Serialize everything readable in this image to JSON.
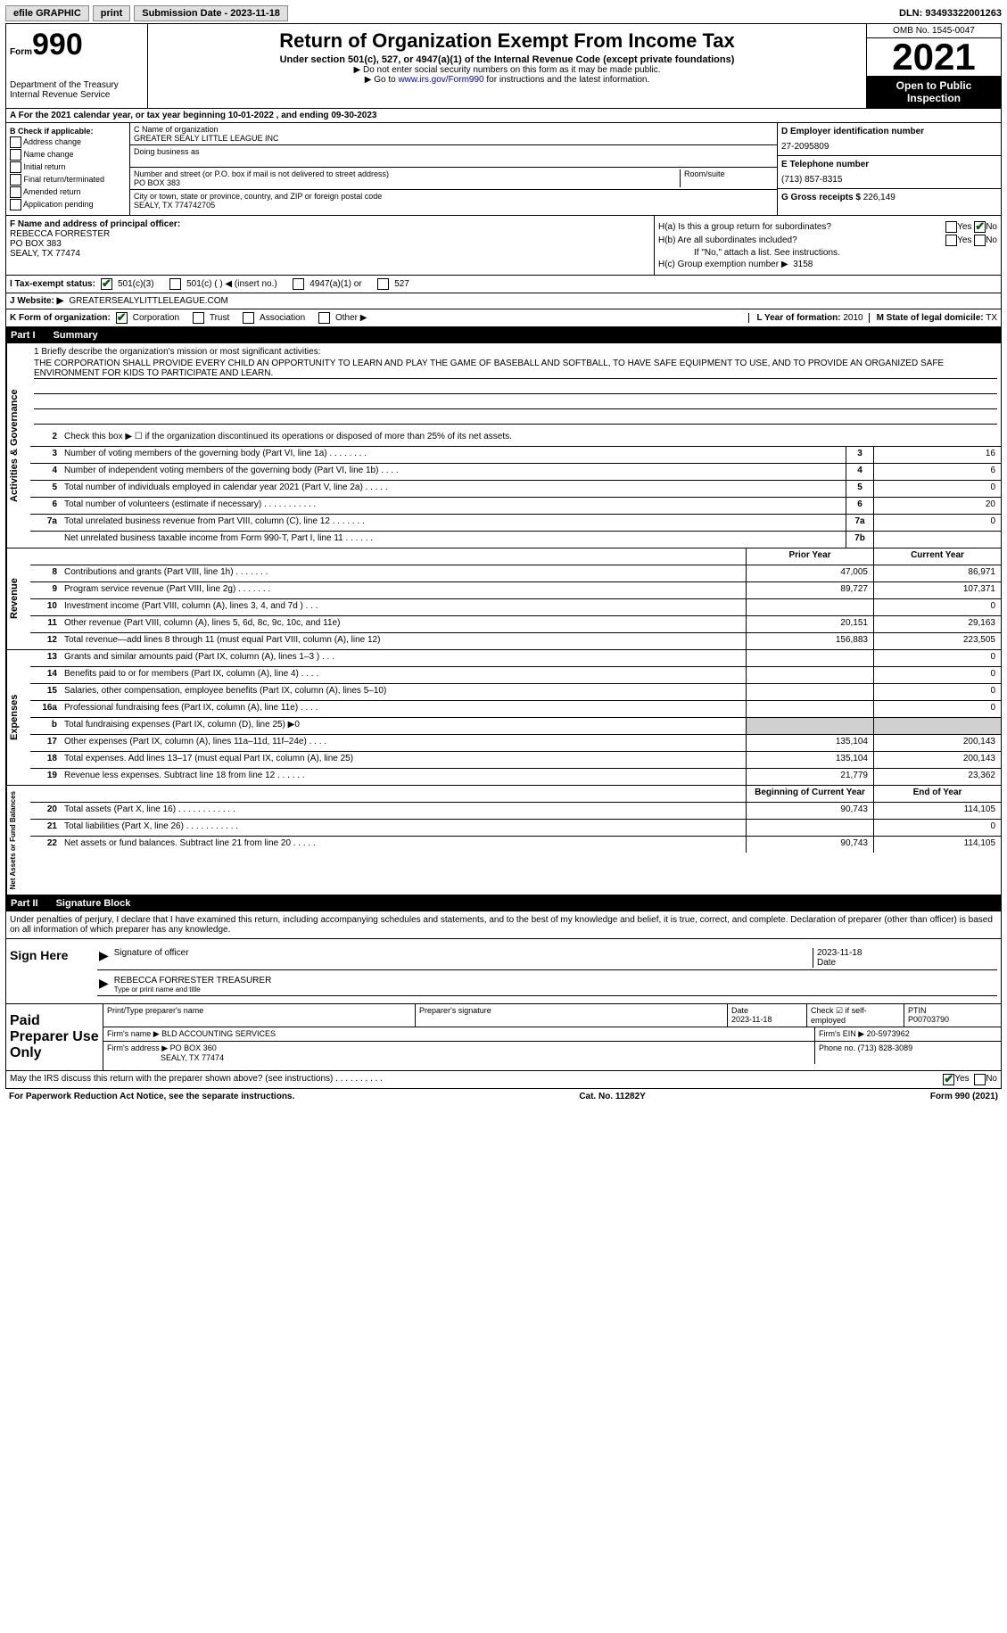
{
  "topbar": {
    "efile": "efile GRAPHIC",
    "print": "print",
    "submission": "Submission Date - 2023-11-18",
    "dln": "DLN: 93493322001263"
  },
  "header": {
    "form_label": "Form",
    "form_no": "990",
    "title": "Return of Organization Exempt From Income Tax",
    "subtitle": "Under section 501(c), 527, or 4947(a)(1) of the Internal Revenue Code (except private foundations)",
    "note1": "▶ Do not enter social security numbers on this form as it may be made public.",
    "note2_pre": "▶ Go to ",
    "note2_link": "www.irs.gov/Form990",
    "note2_post": " for instructions and the latest information.",
    "dept": "Department of the Treasury",
    "irs": "Internal Revenue Service",
    "omb": "OMB No. 1545-0047",
    "year": "2021",
    "open": "Open to Public Inspection"
  },
  "row_a": "A For the 2021 calendar year, or tax year beginning 10-01-2022   , and ending 09-30-2023",
  "col_b": {
    "title": "B Check if applicable:",
    "items": [
      "Address change",
      "Name change",
      "Initial return",
      "Final return/terminated",
      "Amended return",
      "Application pending"
    ]
  },
  "col_c": {
    "name_lbl": "C Name of organization",
    "name": "GREATER SEALY LITTLE LEAGUE INC",
    "dba": "Doing business as",
    "addr_lbl": "Number and street (or P.O. box if mail is not delivered to street address)",
    "room_lbl": "Room/suite",
    "addr": "PO BOX 383",
    "city_lbl": "City or town, state or province, country, and ZIP or foreign postal code",
    "city": "SEALY, TX  774742705"
  },
  "col_de": {
    "d_lbl": "D Employer identification number",
    "d_val": "27-2095809",
    "e_lbl": "E Telephone number",
    "e_val": "(713) 857-8315",
    "g_lbl": "G Gross receipts $",
    "g_val": "226,149"
  },
  "f": {
    "lbl": "F Name and address of principal officer:",
    "name": "REBECCA FORRESTER",
    "addr1": "PO BOX 383",
    "addr2": "SEALY, TX  77474"
  },
  "h": {
    "a_lbl": "H(a)  Is this a group return for subordinates?",
    "b_lbl": "H(b)  Are all subordinates included?",
    "b_note": "If \"No,\" attach a list. See instructions.",
    "c_lbl": "H(c)  Group exemption number ▶",
    "c_val": "3158",
    "yes": "Yes",
    "no": "No"
  },
  "i": {
    "lbl": "I  Tax-exempt status:",
    "opts": [
      "501(c)(3)",
      "501(c) (  ) ◀ (insert no.)",
      "4947(a)(1) or",
      "527"
    ]
  },
  "j": {
    "lbl": "J  Website: ▶",
    "val": "GREATERSEALYLITTLELEAGUE.COM"
  },
  "k": {
    "lbl": "K Form of organization:",
    "opts": [
      "Corporation",
      "Trust",
      "Association",
      "Other ▶"
    ],
    "l_lbl": "L Year of formation:",
    "l_val": "2010",
    "m_lbl": "M State of legal domicile:",
    "m_val": "TX"
  },
  "part1": {
    "label": "Part I",
    "title": "Summary"
  },
  "mission": {
    "lbl": "1   Briefly describe the organization's mission or most significant activities:",
    "text": "THE CORPORATION SHALL PROVIDE EVERY CHILD AN OPPORTUNITY TO LEARN AND PLAY THE GAME OF BASEBALL AND SOFTBALL, TO HAVE SAFE EQUIPMENT TO USE, AND TO PROVIDE AN ORGANIZED SAFE ENVIRONMENT FOR KIDS TO PARTICIPATE AND LEARN."
  },
  "line2": "Check this box ▶ ☐  if the organization discontinued its operations or disposed of more than 25% of its net assets.",
  "gov_rows": [
    {
      "n": "3",
      "d": "Number of voting members of the governing body (Part VI, line 1a)   .    .    .    .    .    .    .    .",
      "b": "3",
      "v": "16"
    },
    {
      "n": "4",
      "d": "Number of independent voting members of the governing body (Part VI, line 1b)   .    .    .    .",
      "b": "4",
      "v": "6"
    },
    {
      "n": "5",
      "d": "Total number of individuals employed in calendar year 2021 (Part V, line 2a)   .    .    .    .    .",
      "b": "5",
      "v": "0"
    },
    {
      "n": "6",
      "d": "Total number of volunteers (estimate if necessary)    .    .    .    .    .    .    .    .    .    .    .",
      "b": "6",
      "v": "20"
    },
    {
      "n": "7a",
      "d": "Total unrelated business revenue from Part VIII, column (C), line 12    .    .    .    .    .    .    .",
      "b": "7a",
      "v": "0"
    },
    {
      "n": "",
      "d": "Net unrelated business taxable income from Form 990-T, Part I, line 11   .    .    .    .    .    .",
      "b": "7b",
      "v": ""
    }
  ],
  "rev_header": {
    "py": "Prior Year",
    "cy": "Current Year"
  },
  "rev_rows": [
    {
      "n": "8",
      "d": "Contributions and grants (Part VIII, line 1h)    .    .    .    .    .    .    .",
      "py": "47,005",
      "cy": "86,971"
    },
    {
      "n": "9",
      "d": "Program service revenue (Part VIII, line 2g)    .    .    .    .    .    .    .",
      "py": "89,727",
      "cy": "107,371"
    },
    {
      "n": "10",
      "d": "Investment income (Part VIII, column (A), lines 3, 4, and 7d )    .    .    .",
      "py": "",
      "cy": "0"
    },
    {
      "n": "11",
      "d": "Other revenue (Part VIII, column (A), lines 5, 6d, 8c, 9c, 10c, and 11e)",
      "py": "20,151",
      "cy": "29,163"
    },
    {
      "n": "12",
      "d": "Total revenue—add lines 8 through 11 (must equal Part VIII, column (A), line 12)",
      "py": "156,883",
      "cy": "223,505"
    }
  ],
  "exp_rows": [
    {
      "n": "13",
      "d": "Grants and similar amounts paid (Part IX, column (A), lines 1–3 )   .    .    .",
      "py": "",
      "cy": "0"
    },
    {
      "n": "14",
      "d": "Benefits paid to or for members (Part IX, column (A), line 4)   .    .    .    .",
      "py": "",
      "cy": "0"
    },
    {
      "n": "15",
      "d": "Salaries, other compensation, employee benefits (Part IX, column (A), lines 5–10)",
      "py": "",
      "cy": "0"
    },
    {
      "n": "16a",
      "d": "Professional fundraising fees (Part IX, column (A), line 11e)   .    .    .    .",
      "py": "",
      "cy": "0"
    },
    {
      "n": "b",
      "d": "Total fundraising expenses (Part IX, column (D), line 25) ▶0",
      "py": "shade",
      "cy": "shade"
    },
    {
      "n": "17",
      "d": "Other expenses (Part IX, column (A), lines 11a–11d, 11f–24e)   .    .    .    .",
      "py": "135,104",
      "cy": "200,143"
    },
    {
      "n": "18",
      "d": "Total expenses. Add lines 13–17 (must equal Part IX, column (A), line 25)",
      "py": "135,104",
      "cy": "200,143"
    },
    {
      "n": "19",
      "d": "Revenue less expenses. Subtract line 18 from line 12   .    .    .    .    .    .",
      "py": "21,779",
      "cy": "23,362"
    }
  ],
  "na_header": {
    "py": "Beginning of Current Year",
    "cy": "End of Year"
  },
  "na_rows": [
    {
      "n": "20",
      "d": "Total assets (Part X, line 16)   .    .    .    .    .    .    .    .    .    .    .    .",
      "py": "90,743",
      "cy": "114,105"
    },
    {
      "n": "21",
      "d": "Total liabilities (Part X, line 26)   .    .    .    .    .    .    .    .    .    .    .",
      "py": "",
      "cy": "0"
    },
    {
      "n": "22",
      "d": "Net assets or fund balances. Subtract line 21 from line 20   .    .    .    .    .",
      "py": "90,743",
      "cy": "114,105"
    }
  ],
  "vtabs": {
    "gov": "Activities & Governance",
    "rev": "Revenue",
    "exp": "Expenses",
    "na": "Net Assets or Fund Balances"
  },
  "part2": {
    "label": "Part II",
    "title": "Signature Block"
  },
  "sig": {
    "decl": "Under penalties of perjury, I declare that I have examined this return, including accompanying schedules and statements, and to the best of my knowledge and belief, it is true, correct, and complete. Declaration of preparer (other than officer) is based on all information of which preparer has any knowledge.",
    "sign_here": "Sign Here",
    "sig_officer": "Signature of officer",
    "date": "Date",
    "date_val": "2023-11-18",
    "name": "REBECCA FORRESTER TREASURER",
    "name_lbl": "Type or print name and title"
  },
  "prep": {
    "label": "Paid Preparer Use Only",
    "h1": "Print/Type preparer's name",
    "h2": "Preparer's signature",
    "h3": "Date",
    "h3v": "2023-11-18",
    "h4": "Check ☑ if self-employed",
    "h5": "PTIN",
    "h5v": "P00703790",
    "firm_lbl": "Firm's name    ▶",
    "firm": "BLD ACCOUNTING SERVICES",
    "ein_lbl": "Firm's EIN ▶",
    "ein": "20-5973962",
    "addr_lbl": "Firm's address ▶",
    "addr1": "PO BOX 360",
    "addr2": "SEALY, TX  77474",
    "phone_lbl": "Phone no.",
    "phone": "(713) 828-3089"
  },
  "discuss": {
    "text": "May the IRS discuss this return with the preparer shown above? (see instructions)   .    .    .    .    .    .    .    .    .    .",
    "yes": "Yes",
    "no": "No"
  },
  "footer": {
    "pra": "For Paperwork Reduction Act Notice, see the separate instructions.",
    "cat": "Cat. No. 11282Y",
    "form": "Form 990 (2021)"
  }
}
